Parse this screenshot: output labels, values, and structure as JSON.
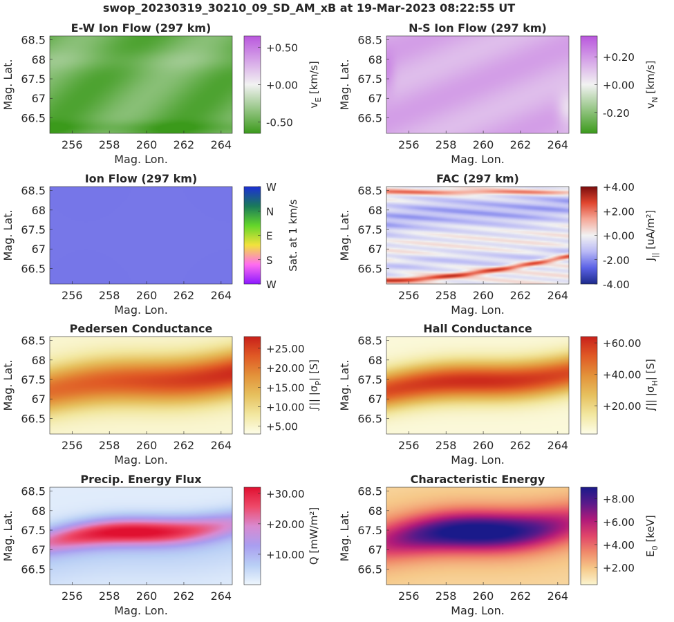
{
  "figure_title": "swop_20230319_30210_09_SD_AM_xB at 19-Mar-2023 08:22:55 UT",
  "chart_data": [
    {
      "type": "heatmap",
      "title": "E-W Ion Flow (297 km)",
      "xlabel": "Mag. Lon.",
      "ylabel": "Mag. Lat.",
      "xlim": [
        254.8,
        264.6
      ],
      "ylim": [
        66.1,
        68.6
      ],
      "xticks": [
        "256",
        "258",
        "260",
        "262",
        "264"
      ],
      "yticks": [
        "66.5",
        "67",
        "67.5",
        "68",
        "68.5"
      ],
      "colorbar": {
        "label_main": "v",
        "label_sub": "E",
        "label_rest": " [km/s]",
        "colormap": [
          "#3b9a1b",
          "#f2f2f2",
          "#b957dd"
        ],
        "ticks": [
          "-0.50",
          "+0.00",
          "+0.50"
        ],
        "tick_values": [
          -0.5,
          0.0,
          0.5
        ],
        "range": [
          -0.65,
          0.65
        ]
      },
      "field": "ew_flow"
    },
    {
      "type": "heatmap",
      "title": "N-S Ion Flow (297 km)",
      "xlabel": "Mag. Lon.",
      "ylabel": "Mag. Lat.",
      "xlim": [
        254.8,
        264.6
      ],
      "ylim": [
        66.1,
        68.6
      ],
      "xticks": [
        "256",
        "258",
        "260",
        "262",
        "264"
      ],
      "yticks": [
        "66.5",
        "67",
        "67.5",
        "68",
        "68.5"
      ],
      "colorbar": {
        "label_main": "v",
        "label_sub": "N",
        "label_rest": " [km/s]",
        "colormap": [
          "#3b9a1b",
          "#f2f2f2",
          "#b957dd"
        ],
        "ticks": [
          "-0.20",
          "+0.00",
          "+0.20"
        ],
        "tick_values": [
          -0.2,
          0.0,
          0.2
        ],
        "range": [
          -0.35,
          0.35
        ]
      },
      "field": "ns_flow"
    },
    {
      "type": "heatmap",
      "title": "Ion Flow (297 km)",
      "xlabel": "Mag. Lon.",
      "ylabel": "Mag. Lat.",
      "xlim": [
        254.8,
        264.6
      ],
      "ylim": [
        66.1,
        68.6
      ],
      "xticks": [
        "256",
        "258",
        "260",
        "262",
        "264"
      ],
      "yticks": [
        "66.5",
        "67",
        "67.5",
        "68",
        "68.5"
      ],
      "colorbar": {
        "label_main": "Sat. at 1 km/s",
        "label_sub": "",
        "label_rest": "",
        "colormap": [
          "#8b18ff",
          "#ff6cf0",
          "#f2e23c",
          "#63d62a",
          "#1a7a5a",
          "#1c2fd6"
        ],
        "ticks": [
          "W",
          "S",
          "E",
          "N",
          "W"
        ],
        "tick_values": [
          0,
          0.25,
          0.5,
          0.75,
          1.0
        ],
        "range": [
          0,
          1
        ]
      },
      "field": "ion_flow"
    },
    {
      "type": "heatmap",
      "title": "FAC (297 km)",
      "xlabel": "Mag. Lon.",
      "ylabel": "Mag. Lat.",
      "xlim": [
        254.8,
        264.6
      ],
      "ylim": [
        66.1,
        68.6
      ],
      "xticks": [
        "256",
        "258",
        "260",
        "262",
        "264"
      ],
      "yticks": [
        "66.5",
        "67",
        "67.5",
        "68",
        "68.5"
      ],
      "colorbar": {
        "label_main": "J",
        "label_sub": "||",
        "label_rest": " [uA/m²]",
        "colormap": [
          "#1c2a8a",
          "#5b62e6",
          "#b9b9f5",
          "#f2f2f2",
          "#f5a898",
          "#e0452e",
          "#7a0d0d"
        ],
        "ticks": [
          "-4.00",
          "-2.00",
          "+0.00",
          "+2.00",
          "+4.00"
        ],
        "tick_values": [
          -4,
          -2,
          0,
          2,
          4
        ],
        "range": [
          -4,
          4
        ]
      },
      "field": "fac"
    },
    {
      "type": "heatmap",
      "title": "Pedersen Conductance",
      "xlabel": "Mag. Lon.",
      "ylabel": "Mag. Lat.",
      "xlim": [
        254.8,
        264.6
      ],
      "ylim": [
        66.1,
        68.6
      ],
      "xticks": [
        "256",
        "258",
        "260",
        "262",
        "264"
      ],
      "yticks": [
        "66.5",
        "67",
        "67.5",
        "68",
        "68.5"
      ],
      "colorbar": {
        "label_main": "∫|| |σ",
        "label_sub": "P",
        "label_rest": "| [S]",
        "colormap": [
          "#fdfde8",
          "#f2e7a0",
          "#e6c05e",
          "#e3923a",
          "#e05a25",
          "#c8201a"
        ],
        "ticks": [
          "+5.00",
          "+10.00",
          "+15.00",
          "+20.00",
          "+25.00"
        ],
        "tick_values": [
          5,
          10,
          15,
          20,
          25
        ],
        "range": [
          3,
          28
        ]
      },
      "field": "pedersen"
    },
    {
      "type": "heatmap",
      "title": "Hall Conductance",
      "xlabel": "Mag. Lon.",
      "ylabel": "Mag. Lat.",
      "xlim": [
        254.8,
        264.6
      ],
      "ylim": [
        66.1,
        68.6
      ],
      "xticks": [
        "256",
        "258",
        "260",
        "262",
        "264"
      ],
      "yticks": [
        "66.5",
        "67",
        "67.5",
        "68",
        "68.5"
      ],
      "colorbar": {
        "label_main": "∫|| |σ",
        "label_sub": "H",
        "label_rest": "| [S]",
        "colormap": [
          "#fdfde8",
          "#f2e7a0",
          "#e6c05e",
          "#e3923a",
          "#e05a25",
          "#c8201a"
        ],
        "ticks": [
          "+20.00",
          "+40.00",
          "+60.00"
        ],
        "tick_values": [
          20,
          40,
          60
        ],
        "range": [
          2,
          64
        ]
      },
      "field": "hall"
    },
    {
      "type": "heatmap",
      "title": "Precip. Energy Flux",
      "xlabel": "Mag. Lon.",
      "ylabel": "Mag. Lat.",
      "xlim": [
        254.8,
        264.6
      ],
      "ylim": [
        66.1,
        68.6
      ],
      "xticks": [
        "256",
        "258",
        "260",
        "262",
        "264"
      ],
      "yticks": [
        "66.5",
        "67",
        "67.5",
        "68",
        "68.5"
      ],
      "colorbar": {
        "label_main": "Q [mW/m²]",
        "label_sub": "",
        "label_rest": "",
        "colormap": [
          "#eef6fd",
          "#b9cff5",
          "#a99ef0",
          "#d98ad0",
          "#ee4a6a",
          "#e01030"
        ],
        "ticks": [
          "+10.00",
          "+20.00",
          "+30.00"
        ],
        "tick_values": [
          10,
          20,
          30
        ],
        "range": [
          0,
          32
        ]
      },
      "field": "precip"
    },
    {
      "type": "heatmap",
      "title": "Characteristic Energy",
      "xlabel": "Mag. Lon.",
      "ylabel": "Mag. Lat.",
      "xlim": [
        254.8,
        264.6
      ],
      "ylim": [
        66.1,
        68.6
      ],
      "xticks": [
        "256",
        "258",
        "260",
        "262",
        "264"
      ],
      "yticks": [
        "66.5",
        "67",
        "67.5",
        "68",
        "68.5"
      ],
      "colorbar": {
        "label_main": "E",
        "label_sub": "0",
        "label_rest": " [keV]",
        "colormap": [
          "#fbf4cf",
          "#f6c98a",
          "#f08a6a",
          "#e0456a",
          "#b01a7a",
          "#5a1a8a",
          "#1a1a8a"
        ],
        "ticks": [
          "+2.00",
          "+4.00",
          "+6.00",
          "+8.00"
        ],
        "tick_values": [
          2,
          4,
          6,
          8
        ],
        "range": [
          0.5,
          9
        ]
      },
      "field": "energy"
    }
  ]
}
